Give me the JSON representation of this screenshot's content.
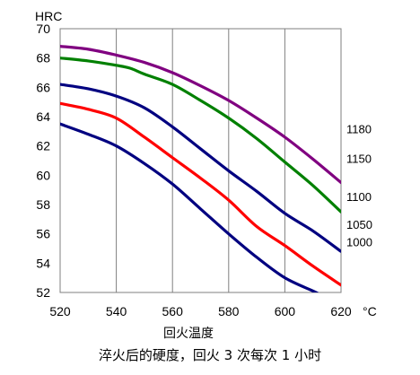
{
  "chart_data": {
    "type": "line",
    "title": "",
    "ylabel": "HRC",
    "xlabel": "回火温度",
    "xunit": "°C",
    "caption": "淬火后的硬度，回火 3 次每次 1 小时",
    "xlim": [
      520,
      620
    ],
    "ylim": [
      52,
      70
    ],
    "xticks": [
      520,
      540,
      560,
      580,
      600,
      620
    ],
    "yticks": [
      52,
      54,
      56,
      58,
      60,
      62,
      64,
      66,
      68,
      70
    ],
    "grid": "vertical",
    "series": [
      {
        "name": "1180",
        "color": "#800080",
        "x": [
          520,
          530,
          540,
          550,
          560,
          570,
          580,
          590,
          600,
          610,
          620
        ],
        "y": [
          68.8,
          68.6,
          68.2,
          67.7,
          67.0,
          66.1,
          65.1,
          63.9,
          62.6,
          61.1,
          59.5
        ]
      },
      {
        "name": "1150",
        "color": "#008000",
        "x": [
          520,
          530,
          540,
          545,
          550,
          560,
          570,
          580,
          590,
          600,
          610,
          620
        ],
        "y": [
          68.0,
          67.8,
          67.5,
          67.3,
          66.9,
          66.2,
          65.1,
          63.9,
          62.5,
          60.9,
          59.3,
          57.5
        ]
      },
      {
        "name": "1100",
        "color": "#000080",
        "x": [
          520,
          530,
          540,
          550,
          560,
          570,
          580,
          590,
          600,
          610,
          620
        ],
        "y": [
          66.2,
          65.9,
          65.4,
          64.6,
          63.3,
          61.8,
          60.3,
          58.9,
          57.4,
          56.2,
          54.8
        ]
      },
      {
        "name": "1050",
        "color": "#ff0000",
        "x": [
          520,
          530,
          540,
          550,
          560,
          570,
          580,
          590,
          600,
          610,
          620
        ],
        "y": [
          64.9,
          64.5,
          63.9,
          62.6,
          61.2,
          59.8,
          58.3,
          56.5,
          55.2,
          53.8,
          52.5
        ]
      },
      {
        "name": "1000",
        "color": "#000080",
        "x": [
          520,
          530,
          540,
          550,
          560,
          570,
          580,
          590,
          600,
          610,
          612
        ],
        "y": [
          63.5,
          62.8,
          62.0,
          60.8,
          59.4,
          57.7,
          56.0,
          54.4,
          53.0,
          52.1,
          51.9
        ]
      }
    ],
    "series_label_values": [
      63.1,
      61.1,
      58.5,
      56.6,
      55.4
    ]
  }
}
